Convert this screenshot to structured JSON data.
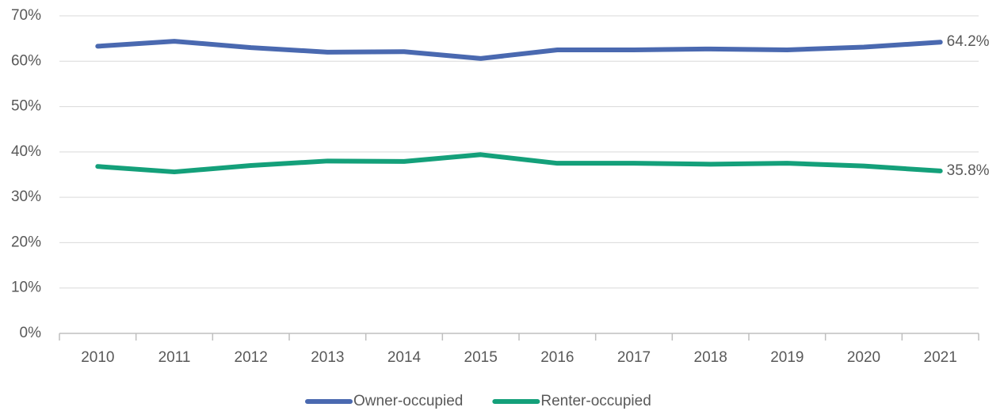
{
  "chart_data": {
    "type": "line",
    "categories": [
      "2010",
      "2011",
      "2012",
      "2013",
      "2014",
      "2015",
      "2016",
      "2017",
      "2018",
      "2019",
      "2020",
      "2021"
    ],
    "series": [
      {
        "name": "Owner-occupied",
        "color": "#4a69b0",
        "values": [
          63.3,
          64.4,
          63.0,
          62.0,
          62.1,
          60.6,
          62.5,
          62.5,
          62.7,
          62.5,
          63.1,
          64.2
        ],
        "value_labels": [
          null,
          null,
          null,
          null,
          null,
          null,
          null,
          null,
          null,
          null,
          null,
          "64.2%"
        ]
      },
      {
        "name": "Renter-occupied",
        "color": "#14a07a",
        "values": [
          36.8,
          35.6,
          37.0,
          38.0,
          37.9,
          39.4,
          37.5,
          37.5,
          37.3,
          37.5,
          36.9,
          35.8
        ],
        "value_labels": [
          null,
          null,
          null,
          null,
          null,
          null,
          null,
          null,
          null,
          null,
          null,
          "35.8%"
        ]
      }
    ],
    "ylim": [
      0,
      70
    ],
    "yticks": [
      {
        "value": 0,
        "label": "0%"
      },
      {
        "value": 10,
        "label": "10%"
      },
      {
        "value": 20,
        "label": "20%"
      },
      {
        "value": 30,
        "label": "30%"
      },
      {
        "value": 40,
        "label": "40%"
      },
      {
        "value": 50,
        "label": "50%"
      },
      {
        "value": 60,
        "label": "60%"
      },
      {
        "value": 70,
        "label": "70%"
      }
    ],
    "grid": true,
    "legend": "bottom"
  }
}
